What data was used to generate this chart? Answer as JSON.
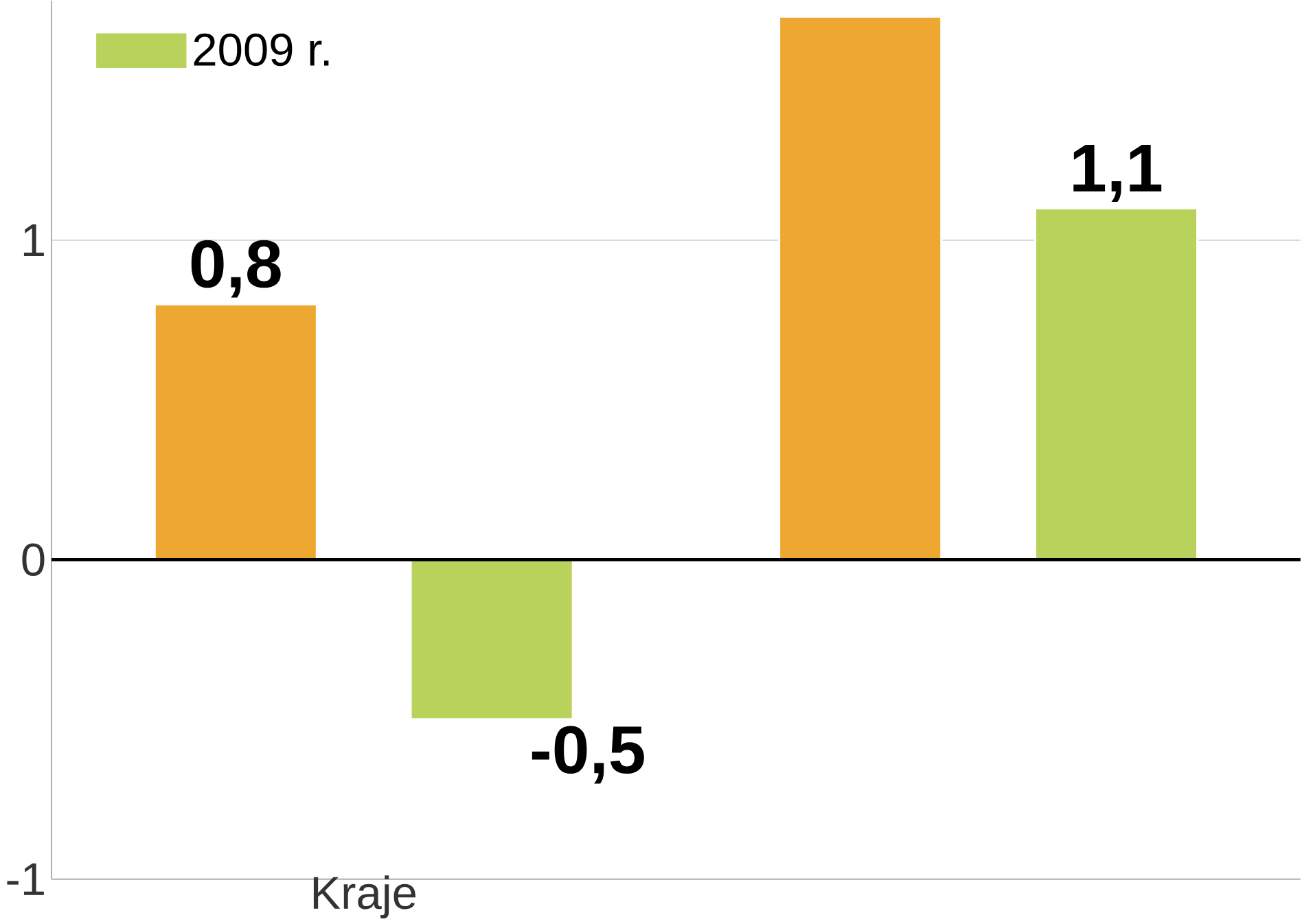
{
  "chart_data": {
    "type": "bar",
    "categories": [
      "Kraje",
      null
    ],
    "series": [
      {
        "color": "#eea832",
        "values": [
          0.8,
          1.7
        ],
        "value_labels": [
          "0,8",
          null
        ]
      },
      {
        "name": "2009 r.",
        "color": "#b9d25c",
        "values": [
          -0.5,
          1.1
        ],
        "value_labels": [
          "-0,5",
          "1,1"
        ]
      }
    ],
    "ylim": [
      -1,
      1.75
    ],
    "yticks": [
      -1,
      0,
      1
    ],
    "grid": "y",
    "legend": "top left"
  }
}
